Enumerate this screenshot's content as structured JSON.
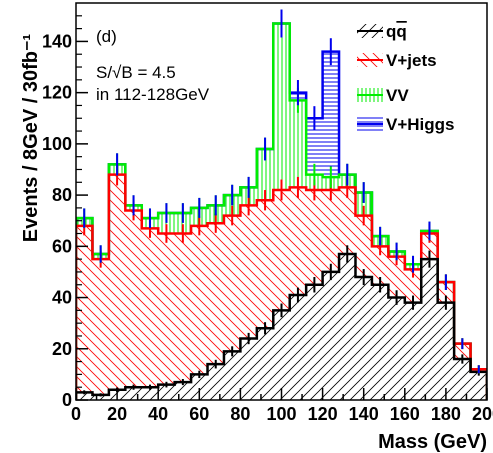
{
  "chart_data": {
    "type": "bar",
    "subtype": "stacked-histogram",
    "panel_label": "(d)",
    "annotation_line1": "S/√B = 4.5",
    "annotation_line2": "in 112-128GeV",
    "xlabel": "Mass (GeV)",
    "ylabel": "Events / 8GeV / 30fb⁻¹",
    "xlim": [
      0,
      200
    ],
    "ylim": [
      0,
      155
    ],
    "xticks": [
      0,
      20,
      40,
      60,
      80,
      100,
      120,
      140,
      160,
      180,
      200
    ],
    "xtick_labels": [
      "0",
      "20",
      "40",
      "60",
      "80",
      "100",
      "120",
      "140",
      "160",
      "180",
      "200"
    ],
    "yticks": [
      0,
      20,
      40,
      60,
      80,
      100,
      120,
      140
    ],
    "ytick_labels": [
      "0",
      "20",
      "40",
      "60",
      "80",
      "100",
      "120",
      "140"
    ],
    "bin_edges": [
      0,
      8,
      16,
      24,
      32,
      40,
      48,
      56,
      64,
      72,
      80,
      88,
      96,
      104,
      112,
      120,
      128,
      136,
      144,
      152,
      160,
      168,
      176,
      184,
      192,
      200
    ],
    "legend_placement": "top-right",
    "series": [
      {
        "name": "q̅q",
        "label_base": "q",
        "label_overbar": "q",
        "color": "#000000",
        "hatch": "diag-up",
        "values": [
          3,
          2,
          4,
          5,
          5,
          6,
          7,
          10,
          14,
          19,
          24,
          28,
          35,
          41,
          45,
          50,
          57,
          48,
          45,
          40,
          38,
          55,
          38,
          16,
          11
        ]
      },
      {
        "name": "V+jets",
        "color": "#ff0000",
        "hatch": "diag-down",
        "values": [
          68,
          55,
          88,
          74,
          67,
          65,
          65,
          68,
          69,
          72,
          76,
          78,
          82,
          83,
          82,
          82,
          83,
          72,
          60,
          56,
          51,
          65,
          46,
          22,
          12
        ]
      },
      {
        "name": "VV",
        "color": "#00ee00",
        "hatch": "vertical",
        "values": [
          71,
          57,
          92,
          76,
          71,
          73,
          73,
          75,
          76,
          80,
          83,
          98,
          147,
          117,
          88,
          87,
          88,
          81,
          64,
          58,
          53,
          66,
          46,
          22,
          12
        ]
      },
      {
        "name": "V+Higgs",
        "color": "#0000ee",
        "hatch": "horizontal",
        "values": [
          71,
          57,
          92,
          76,
          71,
          73,
          73,
          75,
          76,
          80,
          83,
          98,
          147,
          120,
          110,
          136,
          88,
          81,
          64,
          58,
          53,
          66,
          46,
          22,
          12
        ]
      }
    ]
  }
}
